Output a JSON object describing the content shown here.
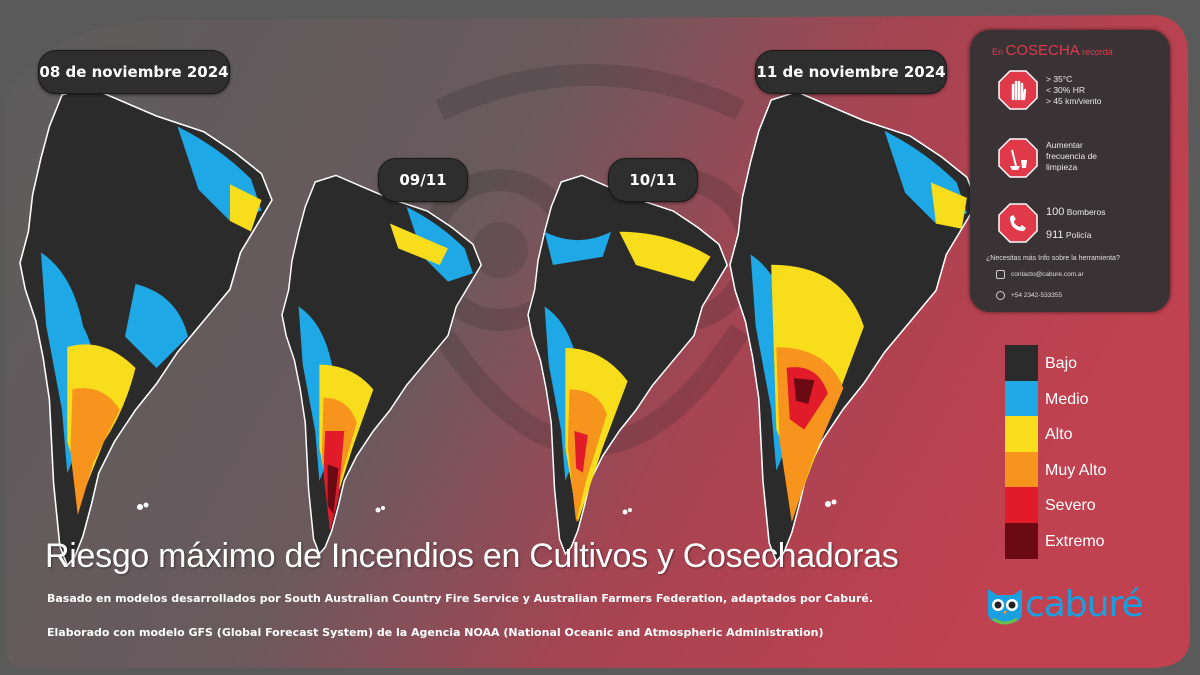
{
  "dates": {
    "d1": "08 de noviembre 2024",
    "d2": "09/11",
    "d3": "10/11",
    "d4": "11 de noviembre 2024"
  },
  "info": {
    "title_prefix": "En",
    "title_main": "COSECHA",
    "title_suffix": "recordá",
    "rule1": [
      "> 35°C",
      "< 30% HR",
      "> 45 km/viento"
    ],
    "rule2": [
      "Aumentar",
      "frecuencia de",
      "limpieza"
    ],
    "bomberos_num": "100",
    "bomberos_label": "Bomberos",
    "policia_num": "911",
    "policia_label": "Policía",
    "question": "¿Necesitas más Info sobre la herramienta?",
    "email": "contacto@cabure.com.ar",
    "phone": "+54 2342-533355"
  },
  "legend": [
    {
      "label": "Bajo",
      "color": "#2b2b2b"
    },
    {
      "label": "Medio",
      "color": "#1fa8e6"
    },
    {
      "label": "Alto",
      "color": "#f7dd1c"
    },
    {
      "label": "Muy Alto",
      "color": "#f7941d"
    },
    {
      "label": "Severo",
      "color": "#e11b2a"
    },
    {
      "label": "Extremo",
      "color": "#6b0a12"
    }
  ],
  "title": "Riesgo máximo de Incendios en Cultivos y Cosechadoras",
  "subtitle1": "Basado en modelos desarrollados por South Australian Country Fire Service y Australian Farmers Federation, adaptados por Caburé.",
  "subtitle2": "Elaborado con modelo GFS (Global Forecast System) de la Agencia NOAA (National Oceanic and Atmospheric Administration)",
  "logo": "caburé",
  "colors": {
    "accent_red": "#c0414f",
    "panel": "#3a3335"
  }
}
